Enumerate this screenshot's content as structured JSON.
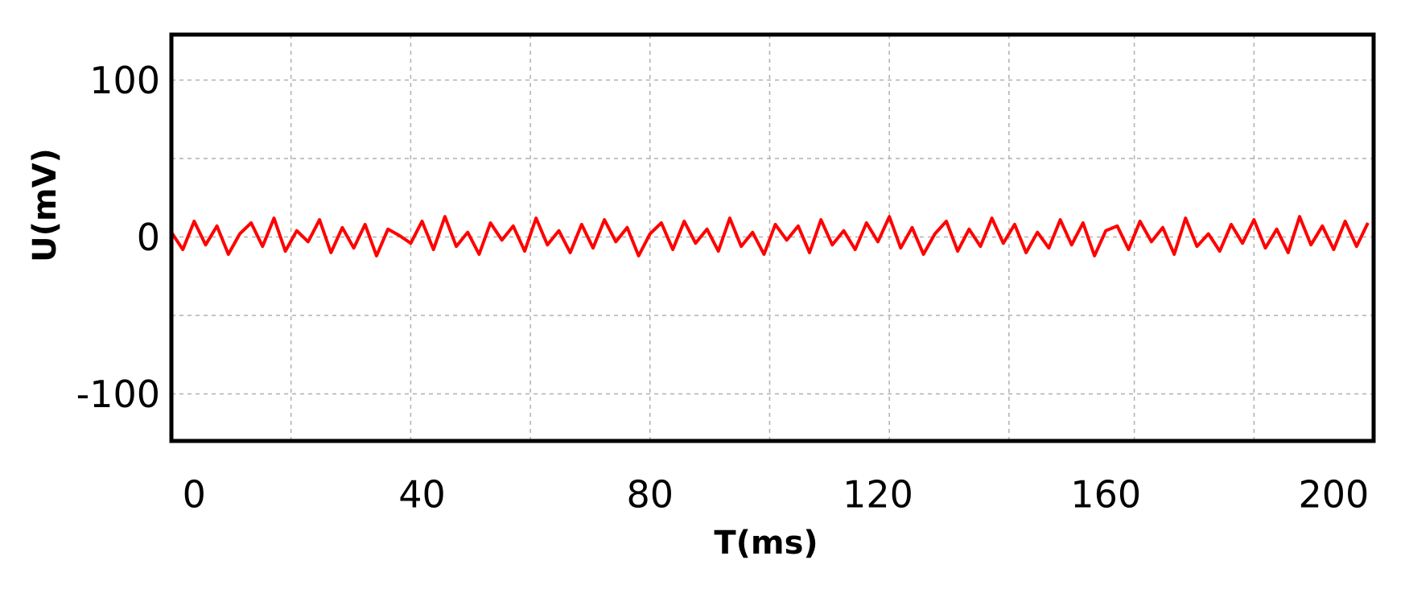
{
  "chart_data": {
    "type": "line",
    "x_label": "T(ms)",
    "y_label": "U(mV)",
    "xlim": [
      -4,
      207
    ],
    "ylim": [
      -130,
      129
    ],
    "xticks": [
      0,
      40,
      80,
      120,
      160,
      200
    ],
    "yticks": [
      -100,
      0,
      100
    ],
    "xgrid": [
      17,
      38,
      59,
      80,
      101,
      122,
      143,
      165,
      186
    ],
    "ygrid": [
      -100,
      -50,
      0,
      50,
      100
    ],
    "grid": true,
    "color": "#ff0000",
    "x": [
      -4,
      -2,
      0,
      2,
      4,
      6,
      8,
      10,
      12,
      14,
      16,
      18,
      20,
      22,
      24,
      26,
      28,
      30,
      32,
      34,
      36,
      38,
      40,
      42,
      44,
      46,
      48,
      50,
      52,
      54,
      56,
      58,
      60,
      62,
      64,
      66,
      68,
      70,
      72,
      74,
      76,
      78,
      80,
      82,
      84,
      86,
      88,
      90,
      92,
      94,
      96,
      98,
      100,
      102,
      104,
      106,
      108,
      110,
      112,
      114,
      116,
      118,
      120,
      122,
      124,
      126,
      128,
      130,
      132,
      134,
      136,
      138,
      140,
      142,
      144,
      146,
      148,
      150,
      152,
      154,
      156,
      158,
      160,
      162,
      164,
      166,
      168,
      170,
      172,
      174,
      176,
      178,
      180,
      182,
      184,
      186,
      188,
      190,
      192,
      194,
      196,
      198,
      200,
      202,
      204,
      206
    ],
    "values": [
      3,
      -8,
      10,
      -5,
      7,
      -11,
      2,
      9,
      -6,
      12,
      -9,
      4,
      -3,
      11,
      -10,
      6,
      -7,
      8,
      -12,
      5,
      1,
      -4,
      10,
      -8,
      13,
      -6,
      3,
      -11,
      9,
      -2,
      7,
      -9,
      12,
      -5,
      4,
      -10,
      8,
      -7,
      11,
      -3,
      6,
      -12,
      2,
      9,
      -8,
      10,
      -4,
      5,
      -9,
      12,
      -6,
      3,
      -11,
      8,
      -2,
      7,
      -10,
      11,
      -5,
      4,
      -8,
      9,
      -3,
      13,
      -7,
      6,
      -11,
      2,
      10,
      -9,
      5,
      -6,
      12,
      -4,
      8,
      -10,
      3,
      -7,
      11,
      -5,
      9,
      -12,
      4,
      7,
      -8,
      10,
      -3,
      6,
      -11,
      12,
      -6,
      2,
      -9,
      8,
      -4,
      11,
      -7,
      5,
      -10,
      13,
      -5,
      7,
      -8,
      10,
      -6,
      9
    ]
  }
}
